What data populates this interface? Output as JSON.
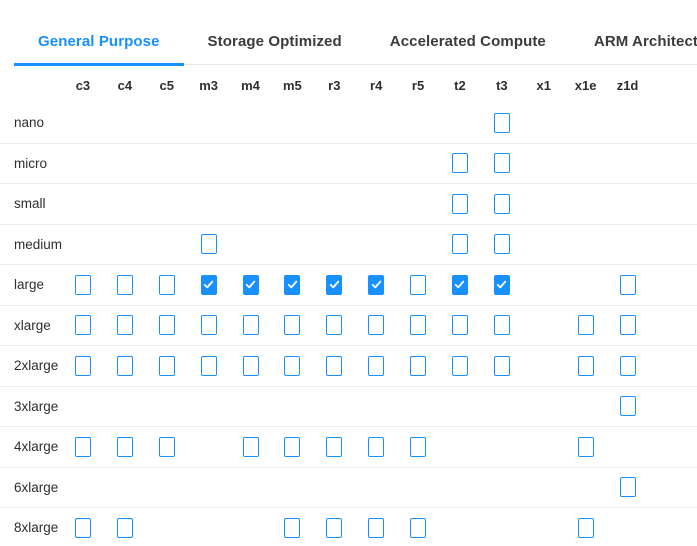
{
  "colors": {
    "accent": "#1890ff",
    "row_border": "#ececec",
    "tab_border": "#e8e8e8",
    "text": "#2f2f2f",
    "checkmark": "#ffffff"
  },
  "icons": {
    "check": "check-icon"
  },
  "tabs": [
    {
      "label": "General Purpose",
      "active": true
    },
    {
      "label": "Storage Optimized",
      "active": false
    },
    {
      "label": "Accelerated Compute",
      "active": false
    },
    {
      "label": "ARM Architecture",
      "active": false
    }
  ],
  "matrix": {
    "columns": [
      "c3",
      "c4",
      "c5",
      "m3",
      "m4",
      "m5",
      "r3",
      "r4",
      "r5",
      "t2",
      "t3",
      "x1",
      "x1e",
      "z1d"
    ],
    "rows": [
      {
        "label": "nano",
        "cells": [
          null,
          null,
          null,
          null,
          null,
          null,
          null,
          null,
          null,
          null,
          "unchecked",
          null,
          null,
          null
        ]
      },
      {
        "label": "micro",
        "cells": [
          null,
          null,
          null,
          null,
          null,
          null,
          null,
          null,
          null,
          "unchecked",
          "unchecked",
          null,
          null,
          null
        ]
      },
      {
        "label": "small",
        "cells": [
          null,
          null,
          null,
          null,
          null,
          null,
          null,
          null,
          null,
          "unchecked",
          "unchecked",
          null,
          null,
          null
        ]
      },
      {
        "label": "medium",
        "cells": [
          null,
          null,
          null,
          "unchecked",
          null,
          null,
          null,
          null,
          null,
          "unchecked",
          "unchecked",
          null,
          null,
          null
        ]
      },
      {
        "label": "large",
        "cells": [
          "unchecked",
          "unchecked",
          "unchecked",
          "checked",
          "checked",
          "checked",
          "checked",
          "checked",
          "unchecked",
          "checked",
          "checked",
          null,
          null,
          "unchecked"
        ]
      },
      {
        "label": "xlarge",
        "cells": [
          "unchecked",
          "unchecked",
          "unchecked",
          "unchecked",
          "unchecked",
          "unchecked",
          "unchecked",
          "unchecked",
          "unchecked",
          "unchecked",
          "unchecked",
          null,
          "unchecked",
          "unchecked"
        ]
      },
      {
        "label": "2xlarge",
        "cells": [
          "unchecked",
          "unchecked",
          "unchecked",
          "unchecked",
          "unchecked",
          "unchecked",
          "unchecked",
          "unchecked",
          "unchecked",
          "unchecked",
          "unchecked",
          null,
          "unchecked",
          "unchecked"
        ]
      },
      {
        "label": "3xlarge",
        "cells": [
          null,
          null,
          null,
          null,
          null,
          null,
          null,
          null,
          null,
          null,
          null,
          null,
          null,
          "unchecked"
        ]
      },
      {
        "label": "4xlarge",
        "cells": [
          "unchecked",
          "unchecked",
          "unchecked",
          null,
          "unchecked",
          "unchecked",
          "unchecked",
          "unchecked",
          "unchecked",
          null,
          null,
          null,
          "unchecked",
          null
        ]
      },
      {
        "label": "6xlarge",
        "cells": [
          null,
          null,
          null,
          null,
          null,
          null,
          null,
          null,
          null,
          null,
          null,
          null,
          null,
          "unchecked"
        ]
      },
      {
        "label": "8xlarge",
        "cells": [
          "unchecked",
          "unchecked",
          null,
          null,
          null,
          "unchecked",
          "unchecked",
          "unchecked",
          "unchecked",
          null,
          null,
          null,
          "unchecked",
          null
        ]
      }
    ]
  }
}
